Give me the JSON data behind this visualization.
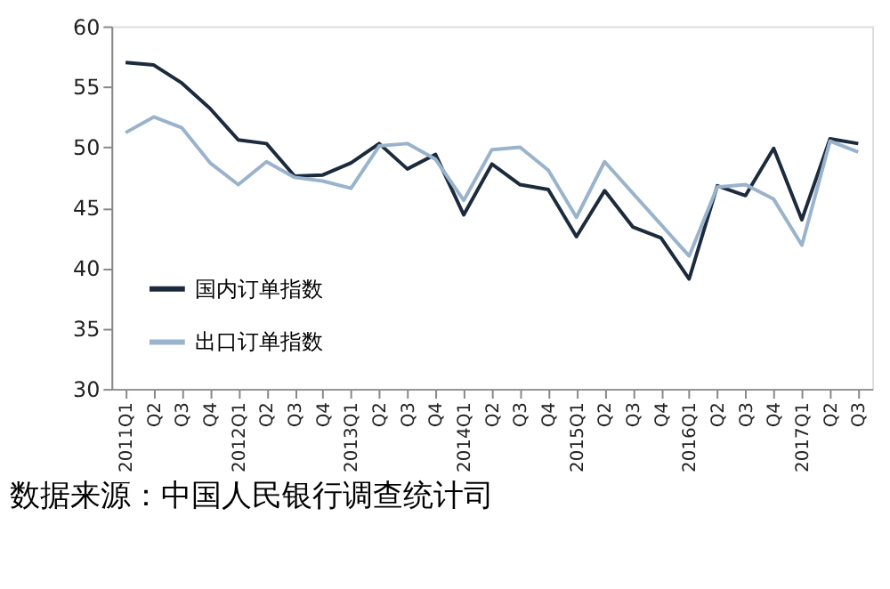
{
  "chart_data": {
    "type": "line",
    "categories": [
      "2011Q1",
      "Q2",
      "Q3",
      "Q4",
      "2012Q1",
      "Q2",
      "Q3",
      "Q4",
      "2013Q1",
      "Q2",
      "Q3",
      "Q4",
      "2014Q1",
      "Q2",
      "Q3",
      "Q4",
      "2015Q1",
      "Q2",
      "Q3",
      "Q4",
      "2016Q1",
      "Q2",
      "Q3",
      "Q4",
      "2017Q1",
      "Q2",
      "Q3"
    ],
    "series": [
      {
        "name": "国内订单指数",
        "color": "#1c2b3c",
        "values": [
          57.0,
          56.8,
          55.3,
          53.2,
          50.6,
          50.3,
          47.6,
          47.7,
          48.7,
          50.3,
          48.2,
          49.4,
          44.4,
          48.6,
          46.9,
          46.5,
          42.6,
          46.4,
          43.4,
          42.5,
          39.1,
          46.8,
          46.0,
          49.9,
          44.0,
          50.7,
          50.3
        ]
      },
      {
        "name": "出口订单指数",
        "color": "#9ab3cc",
        "values": [
          51.2,
          52.5,
          51.6,
          48.7,
          46.9,
          48.8,
          47.5,
          47.2,
          46.6,
          50.1,
          50.3,
          49.0,
          45.6,
          49.8,
          50.0,
          48.1,
          44.2,
          48.8,
          46.2,
          43.6,
          41.0,
          46.7,
          46.9,
          45.7,
          41.9,
          50.5,
          49.6
        ]
      }
    ],
    "ylim": [
      30,
      60
    ],
    "yticks": [
      30,
      35,
      40,
      45,
      50,
      55,
      60
    ],
    "grid": false,
    "legend": "bottom left",
    "annotations": [
      "数据来源：中国人民银行调查统计司"
    ]
  }
}
